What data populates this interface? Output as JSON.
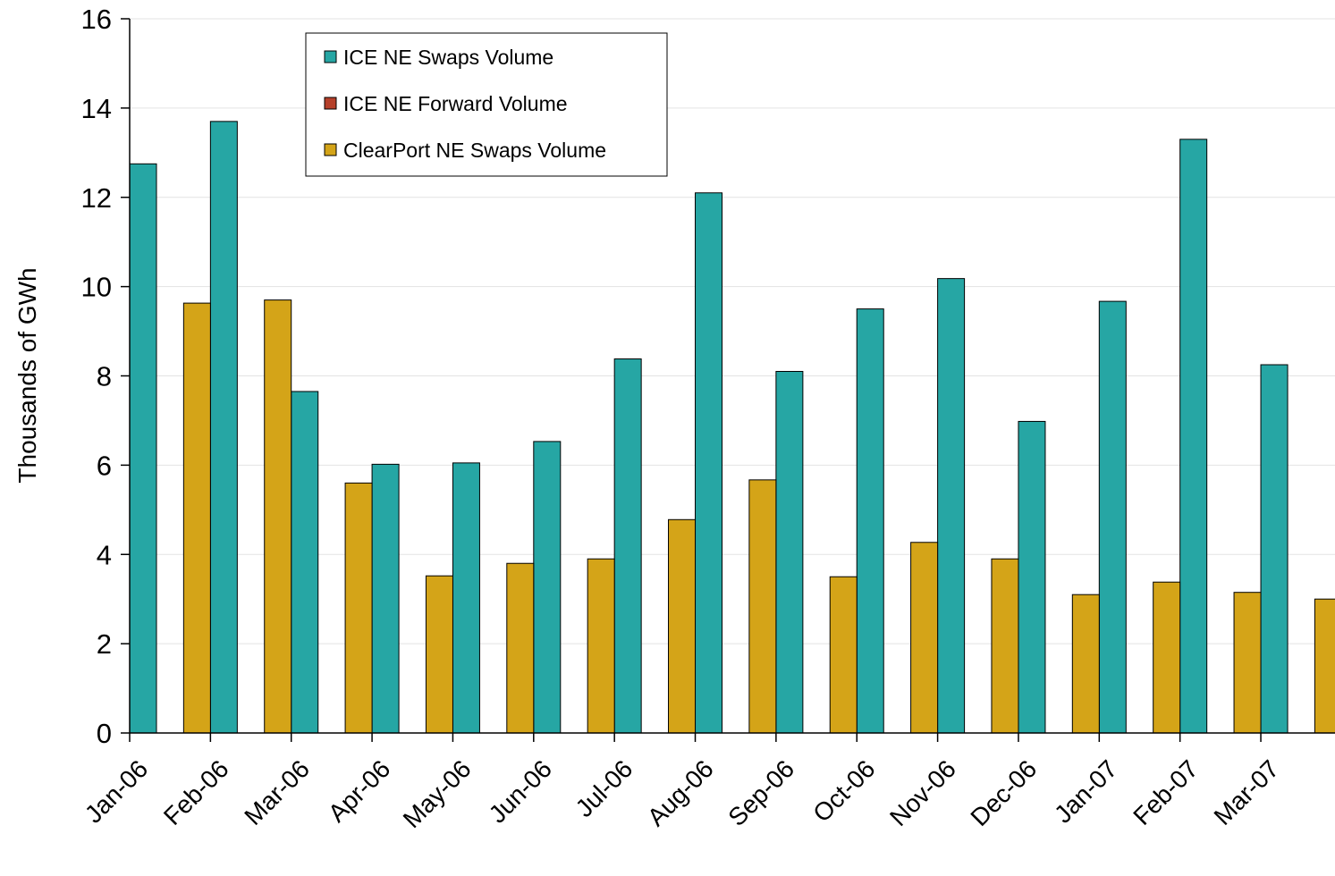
{
  "chart_data": {
    "type": "bar",
    "y_label": "Thousands of GWh",
    "categories": [
      "Jan-06",
      "Feb-06",
      "Mar-06",
      "Apr-06",
      "May-06",
      "Jun-06",
      "Jul-06",
      "Aug-06",
      "Sep-06",
      "Oct-06",
      "Nov-06",
      "Dec-06",
      "Jan-07",
      "Feb-07",
      "Mar-07",
      null
    ],
    "series": [
      {
        "name": "ICE NE Swaps Volume",
        "color": "#26a6a4",
        "values": [
          12.75,
          13.7,
          7.65,
          6.02,
          6.05,
          6.53,
          8.38,
          12.1,
          8.1,
          9.5,
          10.18,
          6.98,
          9.67,
          13.3,
          8.25,
          null
        ]
      },
      {
        "name": "ICE NE Forward Volume",
        "color": "#b5402a",
        "values": [
          null,
          null,
          null,
          null,
          null,
          null,
          null,
          null,
          null,
          null,
          null,
          null,
          null,
          null,
          null,
          null
        ]
      },
      {
        "name": "ClearPort NE Swaps Volume",
        "color": "#d4a418",
        "values": [
          null,
          9.63,
          9.7,
          5.6,
          3.52,
          3.8,
          3.9,
          4.78,
          5.67,
          3.5,
          4.27,
          3.9,
          3.1,
          3.38,
          3.15,
          3.0
        ]
      }
    ],
    "ylim": [
      0,
      16
    ],
    "yticks": [
      0,
      2,
      4,
      6,
      8,
      10,
      12,
      14,
      16
    ],
    "grid": true
  }
}
